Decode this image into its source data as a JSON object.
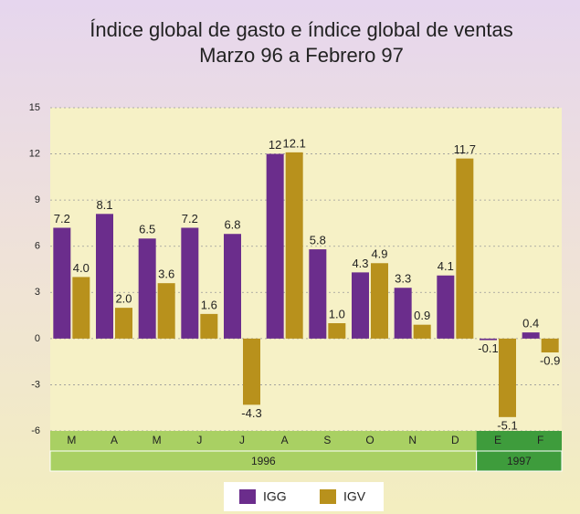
{
  "chart_data": {
    "type": "bar",
    "title": "Índice global de gasto e índice global de ventas",
    "subtitle": "Marzo 96 a Febrero 97",
    "categories": [
      "M",
      "A",
      "M",
      "J",
      "J",
      "A",
      "S",
      "O",
      "N",
      "D",
      "E",
      "F"
    ],
    "groups": [
      {
        "label": "1996",
        "span": 10,
        "color": "#a9d063"
      },
      {
        "label": "1997",
        "span": 2,
        "color": "#3e9c3c"
      }
    ],
    "series": [
      {
        "name": "IGG",
        "color": "#6b2d8c",
        "values": [
          7.2,
          8.1,
          6.5,
          7.2,
          6.8,
          12,
          5.8,
          4.3,
          3.3,
          4.1,
          -0.1,
          0.4
        ],
        "value_labels": [
          "7.2",
          "8.1",
          "6.5",
          "7.2",
          "6.8",
          "12",
          "5.8",
          "4.3",
          "3.3",
          "4.1",
          "-0.1",
          "0.4"
        ]
      },
      {
        "name": "IGV",
        "color": "#b8911c",
        "values": [
          4.0,
          2.0,
          3.6,
          1.6,
          -4.3,
          12.1,
          1.0,
          4.9,
          0.9,
          11.7,
          -5.1,
          -0.9
        ],
        "value_labels": [
          "4.0",
          "2.0",
          "3.6",
          "1.6",
          "-4.3",
          "12.1",
          "1.0",
          "4.9",
          "0.9",
          "11.7",
          "-5.1",
          "-0.9"
        ]
      }
    ],
    "ylim": [
      -6,
      15
    ],
    "yticks": [
      -6,
      -3,
      0,
      3,
      6,
      9,
      12,
      15
    ],
    "grid": true
  }
}
